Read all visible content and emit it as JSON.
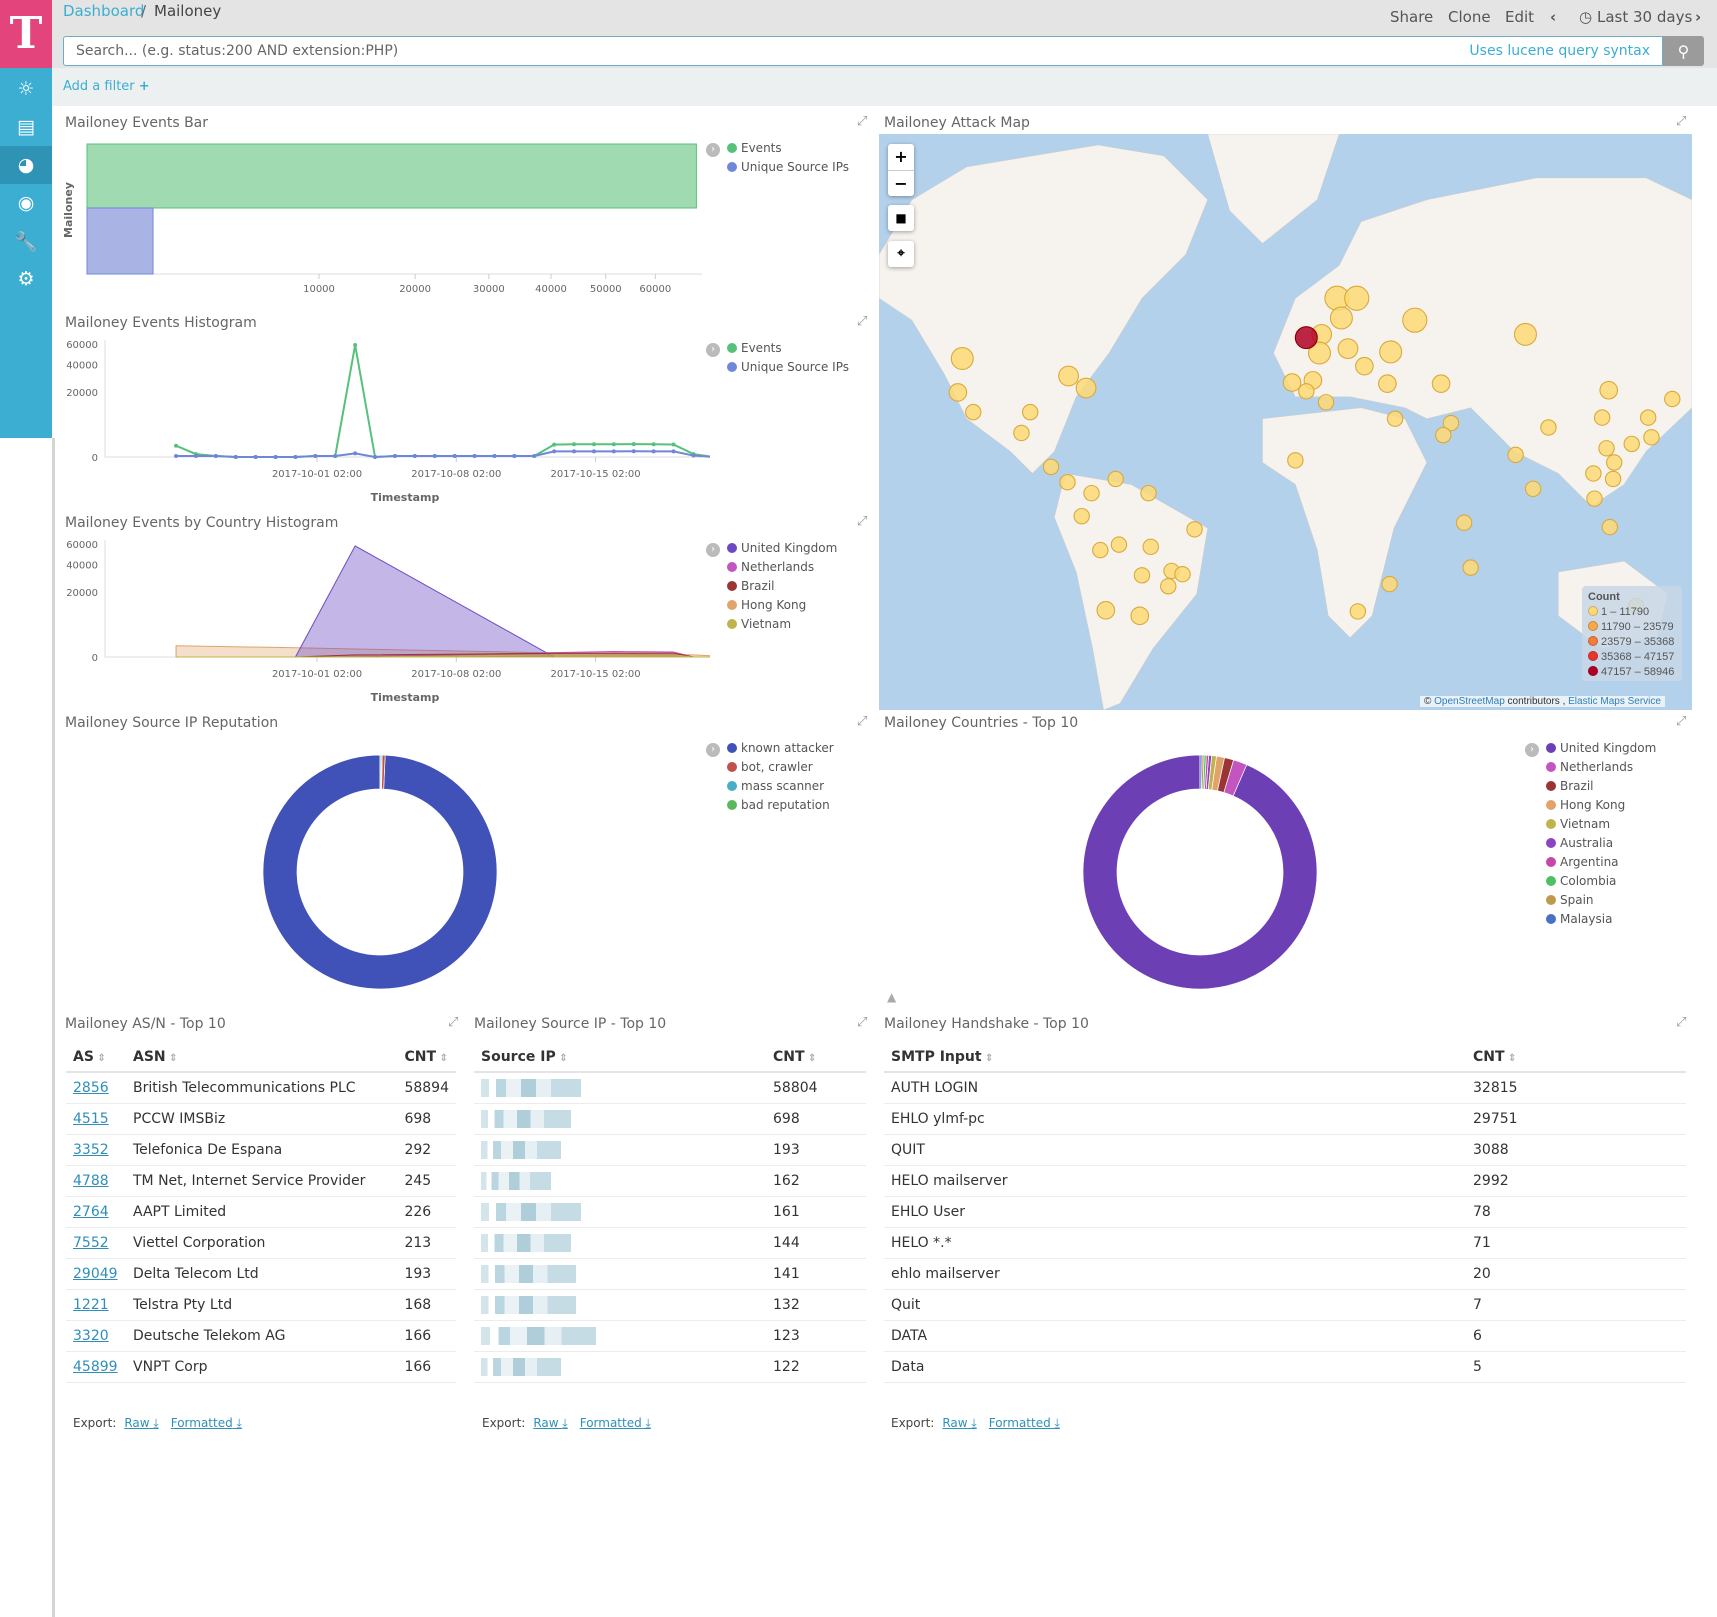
{
  "breadcrumb": {
    "parent": "Dashboard",
    "current": "Mailoney"
  },
  "top_nav": {
    "share": "Share",
    "clone": "Clone",
    "edit": "Edit",
    "time_range": "Last 30 days"
  },
  "search": {
    "placeholder": "Search... (e.g. status:200 AND extension:PHP)",
    "hint": "Uses lucene query syntax"
  },
  "filter": {
    "add_label": "Add a filter"
  },
  "sidebar": {
    "items": [
      {
        "icon": "compass-icon"
      },
      {
        "icon": "bar-chart-icon"
      },
      {
        "icon": "dashboard-icon"
      },
      {
        "icon": "timelion-mask-icon"
      },
      {
        "icon": "wrench-icon"
      },
      {
        "icon": "gear-icon"
      }
    ]
  },
  "colors": {
    "events": "#57c17b",
    "unique_ips": "#6f87d8",
    "accent": "#3caed2",
    "logo": "#e2447b"
  },
  "panels": {
    "events_bar": {
      "title": "Mailoney Events Bar",
      "ylabel": "Mailoney",
      "legend": [
        "Events",
        "Unique Source IPs"
      ]
    },
    "events_hist": {
      "title": "Mailoney Events Histogram",
      "xlabel": "Timestamp",
      "legend": [
        "Events",
        "Unique Source IPs"
      ]
    },
    "country_hist": {
      "title": "Mailoney Events by Country Histogram",
      "xlabel": "Timestamp",
      "legend": [
        "United Kingdom",
        "Netherlands",
        "Brazil",
        "Hong Kong",
        "Vietnam"
      ]
    },
    "map": {
      "title": "Mailoney Attack Map",
      "legend_title": "Count",
      "legend": [
        "1 – 11790",
        "11790 – 23579",
        "23579 – 35368",
        "35368 – 47157",
        "47157 – 58946"
      ],
      "legend_colors": [
        "#fdd976",
        "#fba84a",
        "#f47b3b",
        "#e8342c",
        "#b10026"
      ],
      "attribution_prefix": "©",
      "osm": "OpenStreetMap",
      "contrib": "contributors ,",
      "ems": "Elastic Maps Service",
      "zoom_in": "+",
      "zoom_out": "−"
    },
    "reputation": {
      "title": "Mailoney Source IP Reputation"
    },
    "countries": {
      "title": "Mailoney Countries - Top 10"
    },
    "asn": {
      "title": "Mailoney AS/N - Top 10",
      "headers": [
        "AS",
        "ASN",
        "CNT"
      ],
      "rows": [
        [
          "2856",
          "British Telecommunications PLC",
          "58894"
        ],
        [
          "4515",
          "PCCW IMSBiz",
          "698"
        ],
        [
          "3352",
          "Telefonica De Espana",
          "292"
        ],
        [
          "4788",
          "TM Net, Internet Service Provider",
          "245"
        ],
        [
          "2764",
          "AAPT Limited",
          "226"
        ],
        [
          "7552",
          "Viettel Corporation",
          "213"
        ],
        [
          "29049",
          "Delta Telecom Ltd",
          "193"
        ],
        [
          "1221",
          "Telstra Pty Ltd",
          "168"
        ],
        [
          "3320",
          "Deutsche Telekom AG",
          "166"
        ],
        [
          "45899",
          "VNPT Corp",
          "166"
        ]
      ]
    },
    "srcip": {
      "title": "Mailoney Source IP - Top 10",
      "headers": [
        "Source IP",
        "CNT"
      ],
      "counts": [
        "58804",
        "698",
        "193",
        "162",
        "161",
        "144",
        "141",
        "132",
        "123",
        "122"
      ]
    },
    "handshake": {
      "title": "Mailoney Handshake - Top 10",
      "headers": [
        "SMTP Input",
        "CNT"
      ],
      "rows": [
        [
          "AUTH LOGIN",
          "32815"
        ],
        [
          "EHLO ylmf-pc",
          "29751"
        ],
        [
          "QUIT",
          "3088"
        ],
        [
          "HELO mailserver",
          "2992"
        ],
        [
          "EHLO User",
          "78"
        ],
        [
          "HELO *.*",
          "71"
        ],
        [
          "ehlo mailserver",
          "20"
        ],
        [
          "Quit",
          "7"
        ],
        [
          "DATA",
          "6"
        ],
        [
          "Data",
          "5"
        ]
      ]
    },
    "export": {
      "label": "Export:",
      "raw": "Raw",
      "formatted": "Formatted"
    }
  },
  "chart_data": [
    {
      "type": "bar",
      "orientation": "horizontal",
      "categories": [
        "Mailoney"
      ],
      "series": [
        {
          "name": "Events",
          "values": [
            69000
          ]
        },
        {
          "name": "Unique Source IPs",
          "values": [
            215
          ]
        }
      ],
      "x_ticks": [
        10000,
        20000,
        30000,
        40000,
        50000,
        60000
      ],
      "x_scale": "sqrt",
      "ylabel": "Mailoney"
    },
    {
      "type": "line",
      "xlabel": "Timestamp",
      "y_scale": "sqrt",
      "y_ticks": [
        0,
        20000,
        40000,
        60000
      ],
      "x_ticks": [
        "2017-10-01 02:00",
        "2017-10-08 02:00",
        "2017-10-15 02:00"
      ],
      "x": [
        "2017-09-24",
        "2017-09-25",
        "2017-09-26",
        "2017-09-27",
        "2017-09-28",
        "2017-09-29",
        "2017-09-30",
        "2017-10-01",
        "2017-10-02",
        "2017-10-03",
        "2017-10-04",
        "2017-10-05",
        "2017-10-06",
        "2017-10-07",
        "2017-10-08",
        "2017-10-09",
        "2017-10-10",
        "2017-10-11",
        "2017-10-12",
        "2017-10-13",
        "2017-10-14",
        "2017-10-15",
        "2017-10-16",
        "2017-10-17",
        "2017-10-18",
        "2017-10-19",
        "2017-10-20",
        "2017-10-21",
        "2017-10-22"
      ],
      "series": [
        {
          "name": "Events",
          "values": [
            600,
            40,
            5,
            0,
            0,
            0,
            0,
            5,
            5,
            58900,
            0,
            5,
            5,
            5,
            5,
            5,
            5,
            5,
            5,
            720,
            760,
            760,
            760,
            780,
            760,
            740,
            40,
            0,
            0
          ]
        },
        {
          "name": "Unique Source IPs",
          "values": [
            5,
            5,
            5,
            0,
            0,
            0,
            0,
            5,
            5,
            60,
            0,
            5,
            5,
            5,
            5,
            5,
            5,
            5,
            5,
            150,
            150,
            150,
            150,
            155,
            150,
            150,
            10,
            0,
            0
          ]
        }
      ]
    },
    {
      "type": "area",
      "xlabel": "Timestamp",
      "y_scale": "sqrt",
      "y_ticks": [
        0,
        20000,
        40000,
        60000
      ],
      "x_ticks": [
        "2017-10-01 02:00",
        "2017-10-08 02:00",
        "2017-10-15 02:00"
      ],
      "x": [
        "2017-09-24",
        "2017-09-30",
        "2017-10-03",
        "2017-10-13",
        "2017-10-16",
        "2017-10-19",
        "2017-10-20",
        "2017-10-22"
      ],
      "series": [
        {
          "name": "United Kingdom",
          "values": [
            0,
            0,
            58000,
            0,
            0,
            0,
            0,
            0
          ]
        },
        {
          "name": "Netherlands",
          "values": [
            0,
            0,
            0,
            90,
            140,
            120,
            0,
            0
          ]
        },
        {
          "name": "Brazil",
          "values": [
            0,
            0,
            20,
            60,
            70,
            70,
            0,
            0
          ]
        },
        {
          "name": "Hong Kong",
          "values": [
            600,
            400,
            300,
            80,
            50,
            30,
            20,
            0
          ]
        },
        {
          "name": "Vietnam",
          "values": [
            0,
            0,
            0,
            20,
            20,
            20,
            0,
            0
          ]
        }
      ],
      "colors": [
        "#6c4ac2",
        "#c255c0",
        "#9b3535",
        "#e0a36a",
        "#bfb34b"
      ]
    },
    {
      "type": "pie",
      "donut": true,
      "categories": [
        "known attacker",
        "bot, crawler",
        "mass scanner",
        "bad reputation"
      ],
      "values": [
        99.3,
        0.4,
        0.15,
        0.15
      ],
      "colors": [
        "#4051b8",
        "#c0504d",
        "#4bacc6",
        "#5cb85c"
      ]
    },
    {
      "type": "pie",
      "donut": true,
      "categories": [
        "United Kingdom",
        "Netherlands",
        "Brazil",
        "Hong Kong",
        "Vietnam",
        "Australia",
        "Argentina",
        "Colombia",
        "Spain",
        "Malaysia"
      ],
      "values": [
        58900,
        1200,
        800,
        700,
        420,
        260,
        200,
        190,
        180,
        170
      ],
      "colors": [
        "#6c3fb5",
        "#c255c0",
        "#9b3535",
        "#e0a36a",
        "#bfb34b",
        "#8e44c1",
        "#c547a8",
        "#4cc062",
        "#c09a4b",
        "#4a6fc7"
      ]
    }
  ]
}
